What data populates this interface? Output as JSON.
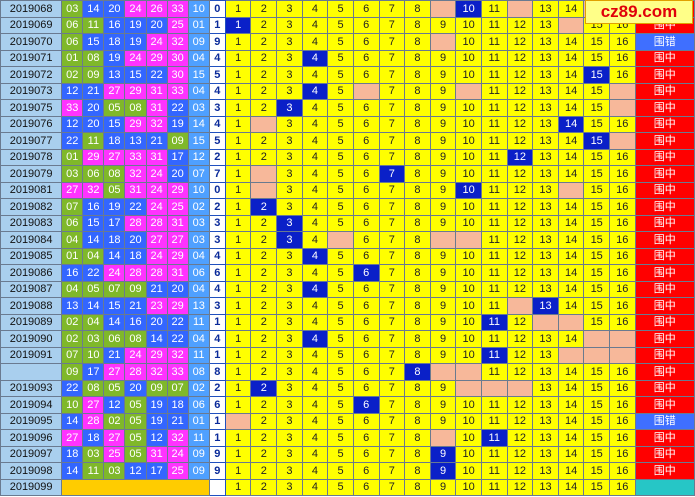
{
  "logo": "cz89.com",
  "grid_labels": [
    "1",
    "2",
    "3",
    "4",
    "5",
    "6",
    "7",
    "8",
    "9",
    "10",
    "11",
    "12",
    "13",
    "14",
    "15",
    "16"
  ],
  "rows": [
    {
      "period": "2019068",
      "numbers": [
        "03",
        "14",
        "20",
        "24",
        "26",
        "33",
        "10"
      ],
      "key": "0",
      "hit": 10,
      "blanks": [
        9,
        12,
        15,
        16
      ],
      "result": "围中"
    },
    {
      "period": "2019069",
      "numbers": [
        "06",
        "11",
        "16",
        "19",
        "20",
        "25",
        "01"
      ],
      "key": "1",
      "hit": 1,
      "blanks": [
        14
      ],
      "result": "围中"
    },
    {
      "period": "2019070",
      "numbers": [
        "06",
        "15",
        "18",
        "19",
        "24",
        "32",
        "09"
      ],
      "key": "9",
      "hit": null,
      "blanks": [
        9
      ],
      "result": "围错"
    },
    {
      "period": "2019071",
      "numbers": [
        "01",
        "08",
        "19",
        "24",
        "29",
        "30",
        "04"
      ],
      "key": "4",
      "hit": 4,
      "blanks": [],
      "result": "围中"
    },
    {
      "period": "2019072",
      "numbers": [
        "02",
        "09",
        "13",
        "15",
        "22",
        "30",
        "15"
      ],
      "key": "5",
      "hit": 15,
      "blanks": [],
      "result": "围中"
    },
    {
      "period": "2019073",
      "numbers": [
        "12",
        "21",
        "27",
        "29",
        "31",
        "33",
        "04"
      ],
      "key": "4",
      "hit": 4,
      "blanks": [
        6,
        10,
        16
      ],
      "result": "围中"
    },
    {
      "period": "2019075",
      "numbers": [
        "33",
        "20",
        "05",
        "08",
        "31",
        "22",
        "03"
      ],
      "key": "3",
      "hit": 3,
      "blanks": [
        16
      ],
      "result": "围中"
    },
    {
      "period": "2019076",
      "numbers": [
        "12",
        "20",
        "15",
        "29",
        "32",
        "19",
        "14"
      ],
      "key": "4",
      "hit": 14,
      "blanks": [
        2
      ],
      "result": "围中"
    },
    {
      "period": "2019077",
      "numbers": [
        "22",
        "11",
        "18",
        "13",
        "21",
        "09",
        "15"
      ],
      "key": "5",
      "hit": 15,
      "blanks": [
        16
      ],
      "result": "围中"
    },
    {
      "period": "2019078",
      "numbers": [
        "01",
        "29",
        "27",
        "33",
        "31",
        "17",
        "12"
      ],
      "key": "2",
      "hit": 12,
      "blanks": [],
      "result": "围中"
    },
    {
      "period": "2019079",
      "numbers": [
        "03",
        "06",
        "08",
        "32",
        "24",
        "20",
        "07"
      ],
      "key": "7",
      "hit": 7,
      "blanks": [
        2
      ],
      "result": "围中"
    },
    {
      "period": "2019081",
      "numbers": [
        "27",
        "32",
        "05",
        "31",
        "24",
        "29",
        "10"
      ],
      "key": "0",
      "hit": 10,
      "blanks": [
        2,
        14
      ],
      "result": "围中"
    },
    {
      "period": "2019082",
      "numbers": [
        "07",
        "16",
        "19",
        "22",
        "24",
        "25",
        "02"
      ],
      "key": "2",
      "hit": 2,
      "blanks": [],
      "result": "围中"
    },
    {
      "period": "2019083",
      "numbers": [
        "06",
        "15",
        "17",
        "28",
        "28",
        "31",
        "03"
      ],
      "key": "3",
      "hit": 3,
      "blanks": [],
      "result": "围中"
    },
    {
      "period": "2019084",
      "numbers": [
        "04",
        "14",
        "18",
        "20",
        "27",
        "27",
        "03"
      ],
      "key": "3",
      "hit": 3,
      "blanks": [
        5,
        9,
        10
      ],
      "result": "围中"
    },
    {
      "period": "2019085",
      "numbers": [
        "01",
        "04",
        "14",
        "18",
        "24",
        "29",
        "04"
      ],
      "key": "4",
      "hit": 4,
      "blanks": [],
      "result": "围中"
    },
    {
      "period": "2019086",
      "numbers": [
        "16",
        "22",
        "24",
        "28",
        "28",
        "31",
        "06"
      ],
      "key": "6",
      "hit": 6,
      "blanks": [],
      "result": "围中"
    },
    {
      "period": "2019087",
      "numbers": [
        "04",
        "05",
        "07",
        "09",
        "21",
        "20",
        "04"
      ],
      "key": "4",
      "hit": 4,
      "blanks": [],
      "result": "围中"
    },
    {
      "period": "2019088",
      "numbers": [
        "13",
        "14",
        "15",
        "21",
        "23",
        "29",
        "13"
      ],
      "key": "3",
      "hit": 13,
      "blanks": [
        12
      ],
      "result": "围中"
    },
    {
      "period": "2019089",
      "numbers": [
        "02",
        "04",
        "14",
        "16",
        "20",
        "22",
        "11"
      ],
      "key": "1",
      "hit": 11,
      "blanks": [
        13,
        14
      ],
      "result": "围中"
    },
    {
      "period": "2019090",
      "numbers": [
        "02",
        "03",
        "06",
        "08",
        "14",
        "22",
        "04"
      ],
      "key": "4",
      "hit": 4,
      "blanks": [
        15,
        16
      ],
      "result": "围中"
    },
    {
      "period": "2019091",
      "numbers": [
        "07",
        "10",
        "21",
        "24",
        "29",
        "32",
        "11"
      ],
      "key": "1",
      "hit": 11,
      "blanks": [
        14,
        15,
        16
      ],
      "result": "围中"
    },
    {
      "period": null,
      "numbers": [
        "09",
        "17",
        "27",
        "28",
        "32",
        "33",
        "08"
      ],
      "key": "8",
      "hit": 8,
      "blanks": [
        9,
        10
      ],
      "result": "围中"
    },
    {
      "period": "2019093",
      "numbers": [
        "22",
        "08",
        "05",
        "20",
        "09",
        "07",
        "02"
      ],
      "key": "2",
      "hit": 2,
      "blanks": [
        10,
        11,
        12
      ],
      "result": "围中"
    },
    {
      "period": "2019094",
      "numbers": [
        "10",
        "27",
        "12",
        "05",
        "19",
        "18",
        "06"
      ],
      "key": "6",
      "hit": 6,
      "blanks": [],
      "result": "围中"
    },
    {
      "period": "2019095",
      "numbers": [
        "14",
        "28",
        "02",
        "05",
        "19",
        "21",
        "01"
      ],
      "key": "1",
      "hit": null,
      "blanks": [
        1
      ],
      "result": "围错"
    },
    {
      "period": "2019096",
      "numbers": [
        "27",
        "18",
        "27",
        "05",
        "12",
        "32",
        "11"
      ],
      "key": "1",
      "hit": 11,
      "blanks": [
        9
      ],
      "result": "围中"
    },
    {
      "period": "2019097",
      "numbers": [
        "18",
        "03",
        "25",
        "05",
        "31",
        "24",
        "09"
      ],
      "key": "9",
      "hit": 9,
      "blanks": [],
      "result": "围中"
    },
    {
      "period": "2019098",
      "numbers": [
        "14",
        "11",
        "03",
        "12",
        "17",
        "25",
        "09"
      ],
      "key": "9",
      "hit": 9,
      "blanks": [],
      "result": "围中"
    },
    {
      "period": "2019099",
      "numbers": null,
      "key": null,
      "hit": null,
      "blanks": [],
      "result": null
    }
  ]
}
